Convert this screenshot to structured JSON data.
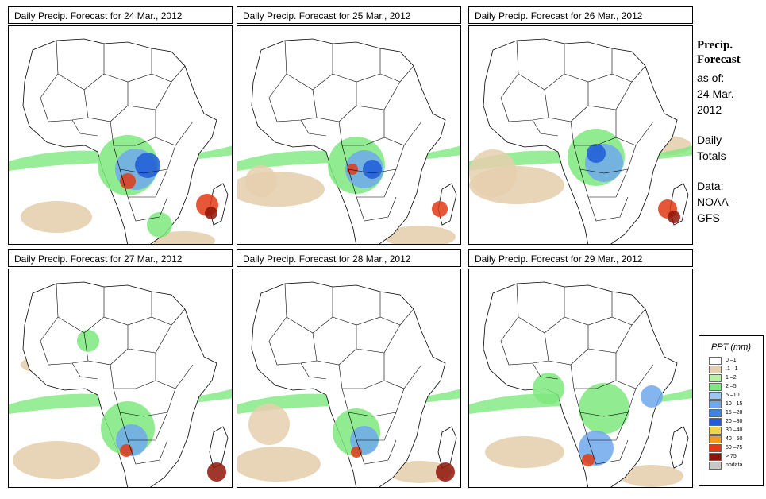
{
  "panels": [
    {
      "title": "Daily Precip. Forecast for  24 Mar., 2012"
    },
    {
      "title": "Daily Precip. Forecast for  25 Mar., 2012"
    },
    {
      "title": "Daily Precip. Forecast for  26 Mar., 2012"
    },
    {
      "title": "Daily Precip. Forecast for  27 Mar., 2012"
    },
    {
      "title": "Daily Precip. Forecast for  28 Mar., 2012"
    },
    {
      "title": "Daily Precip. Forecast for  29 Mar., 2012"
    }
  ],
  "side": {
    "title_line1": "Precip.",
    "title_line2": "Forecast",
    "asof_line1": "as of:",
    "asof_line2": "24 Mar.",
    "asof_line3": "2012",
    "daily_line1": "Daily",
    "daily_line2": "Totals",
    "data_line1": "Data:",
    "data_line2": "NOAA–",
    "data_line3": "GFS"
  },
  "legend": {
    "title": "PPT (mm)",
    "items": [
      {
        "label": "0 –1",
        "color": "#ffffff"
      },
      {
        "label": ".1 –1",
        "color": "#e6cfae"
      },
      {
        "label": "1 –2",
        "color": "#b8f0a8"
      },
      {
        "label": "2 –5",
        "color": "#7ee87e"
      },
      {
        "label": "5 –10",
        "color": "#9cc8f0"
      },
      {
        "label": "10 –15",
        "color": "#6ea8ec"
      },
      {
        "label": "15 –20",
        "color": "#3f82e6"
      },
      {
        "label": "20 –30",
        "color": "#1e5cd8"
      },
      {
        "label": "30 –40",
        "color": "#f4d24a"
      },
      {
        "label": "40 –50",
        "color": "#f49a1e"
      },
      {
        "label": "50 –75",
        "color": "#e23a14"
      },
      {
        "label": "> 75",
        "color": "#8e1408"
      },
      {
        "label": "nodata",
        "color": "#c8c8c8"
      }
    ]
  }
}
